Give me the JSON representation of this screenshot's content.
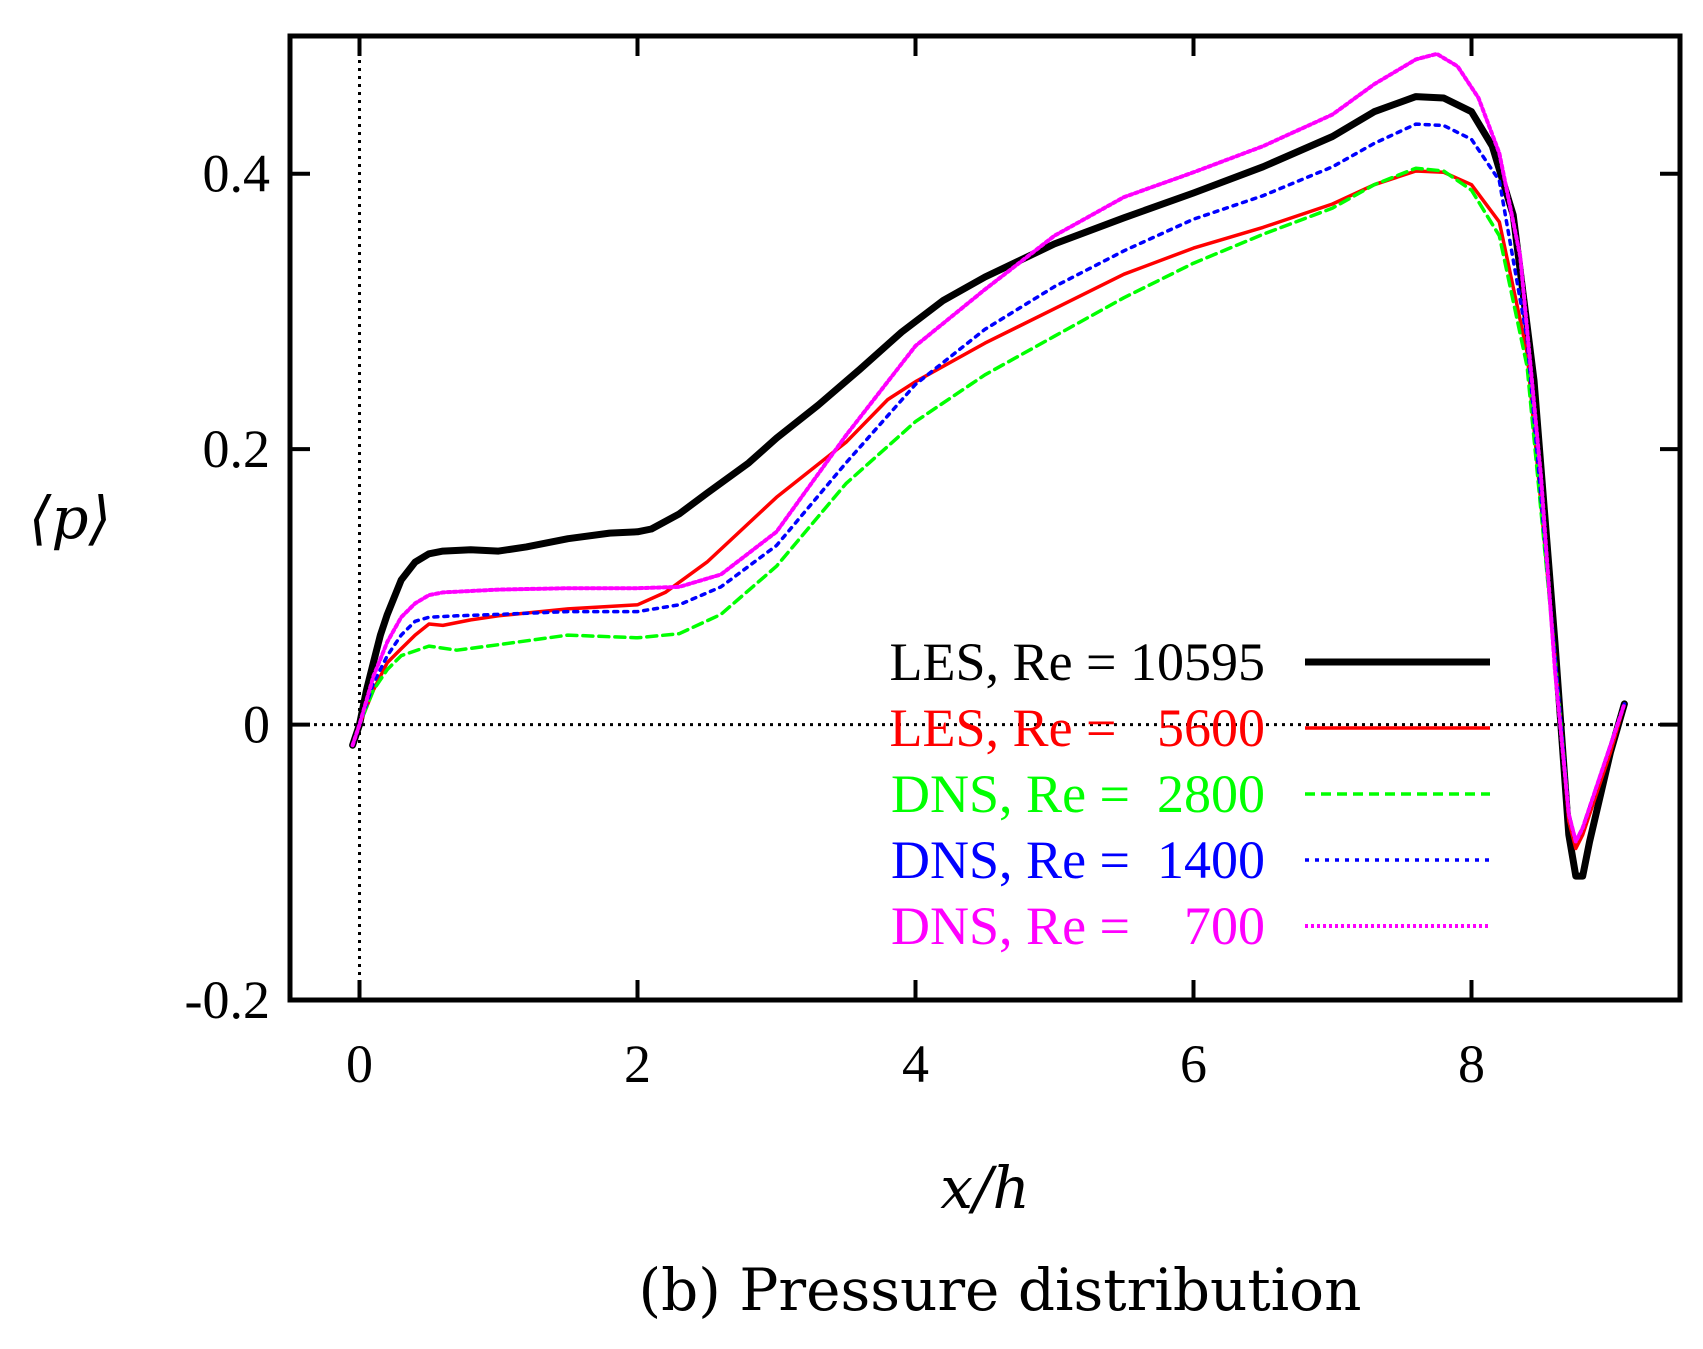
{
  "chart_data": {
    "type": "line",
    "title": "",
    "caption": "(b) Pressure distribution",
    "xlabel": "x/h",
    "ylabel": "⟨p⟩",
    "xlim": [
      -0.5,
      9.5
    ],
    "ylim": [
      -0.2,
      0.5
    ],
    "xticks": [
      0,
      2,
      4,
      6,
      8
    ],
    "xtick_labels": [
      "0",
      "2",
      "4",
      "6",
      "8"
    ],
    "yticks": [
      -0.2,
      0,
      0.2,
      0.4
    ],
    "ytick_labels": [
      "-0.2",
      "0",
      "0.2",
      "0.4"
    ],
    "grid": false,
    "reference_lines": [
      {
        "axis": "y",
        "value": 0,
        "style": "dotted"
      },
      {
        "axis": "x",
        "value": 0,
        "style": "dotted"
      }
    ],
    "legend_position": "lower-right inside",
    "series": [
      {
        "name": "LES, Re = 10595",
        "color": "#000000",
        "style": "solid-thick",
        "x": [
          -0.05,
          0,
          0.05,
          0.1,
          0.15,
          0.2,
          0.3,
          0.4,
          0.5,
          0.6,
          0.8,
          1.0,
          1.2,
          1.5,
          1.8,
          2.0,
          2.1,
          2.3,
          2.5,
          2.8,
          3.0,
          3.3,
          3.6,
          3.9,
          4.2,
          4.5,
          5.0,
          5.5,
          6.0,
          6.5,
          7.0,
          7.3,
          7.6,
          7.8,
          8.0,
          8.15,
          8.3,
          8.45,
          8.6,
          8.7,
          8.75,
          8.8,
          8.85,
          9.0,
          9.1
        ],
        "y": [
          -0.015,
          0,
          0.025,
          0.045,
          0.065,
          0.08,
          0.105,
          0.118,
          0.124,
          0.126,
          0.127,
          0.126,
          0.129,
          0.135,
          0.139,
          0.14,
          0.142,
          0.153,
          0.168,
          0.19,
          0.208,
          0.232,
          0.258,
          0.285,
          0.308,
          0.325,
          0.349,
          0.368,
          0.386,
          0.405,
          0.427,
          0.445,
          0.456,
          0.455,
          0.445,
          0.42,
          0.37,
          0.25,
          0.06,
          -0.08,
          -0.11,
          -0.11,
          -0.085,
          -0.02,
          0.015
        ]
      },
      {
        "name": "LES, Re =   5600",
        "color": "#ff0000",
        "style": "solid",
        "x": [
          -0.05,
          0,
          0.1,
          0.2,
          0.3,
          0.4,
          0.5,
          0.6,
          0.8,
          1.0,
          1.5,
          2.0,
          2.2,
          2.5,
          3.0,
          3.5,
          3.8,
          4.0,
          4.5,
          5.0,
          5.5,
          6.0,
          6.5,
          7.0,
          7.3,
          7.6,
          7.8,
          8.0,
          8.2,
          8.4,
          8.6,
          8.7,
          8.75,
          8.8,
          8.9,
          9.0,
          9.1
        ],
        "y": [
          -0.015,
          0,
          0.025,
          0.045,
          0.055,
          0.065,
          0.073,
          0.072,
          0.076,
          0.079,
          0.084,
          0.087,
          0.096,
          0.118,
          0.165,
          0.205,
          0.236,
          0.249,
          0.277,
          0.302,
          0.327,
          0.346,
          0.361,
          0.378,
          0.392,
          0.402,
          0.401,
          0.392,
          0.365,
          0.27,
          0.05,
          -0.07,
          -0.09,
          -0.08,
          -0.05,
          -0.02,
          0.015
        ]
      },
      {
        "name": "DNS, Re =  2800",
        "color": "#00ff00",
        "style": "dashed",
        "x": [
          -0.05,
          0,
          0.1,
          0.2,
          0.3,
          0.5,
          0.7,
          1.0,
          1.5,
          2.0,
          2.3,
          2.6,
          3.0,
          3.5,
          4.0,
          4.5,
          5.0,
          5.5,
          6.0,
          6.5,
          7.0,
          7.3,
          7.6,
          7.8,
          8.0,
          8.2,
          8.4,
          8.6,
          8.7,
          8.75,
          8.8,
          8.9,
          9.0,
          9.1
        ],
        "y": [
          -0.015,
          0,
          0.025,
          0.04,
          0.05,
          0.057,
          0.054,
          0.058,
          0.065,
          0.063,
          0.066,
          0.08,
          0.115,
          0.175,
          0.22,
          0.254,
          0.282,
          0.31,
          0.335,
          0.356,
          0.375,
          0.392,
          0.404,
          0.402,
          0.388,
          0.355,
          0.26,
          0.05,
          -0.065,
          -0.085,
          -0.075,
          -0.045,
          -0.015,
          0.015
        ]
      },
      {
        "name": "DNS, Re =  1400",
        "color": "#0000ff",
        "style": "dotted-fine",
        "x": [
          -0.05,
          0,
          0.1,
          0.2,
          0.3,
          0.4,
          0.5,
          0.7,
          1.0,
          1.5,
          2.0,
          2.3,
          2.6,
          3.0,
          3.5,
          4.0,
          4.5,
          5.0,
          5.5,
          6.0,
          6.5,
          7.0,
          7.3,
          7.6,
          7.8,
          8.0,
          8.2,
          8.4,
          8.6,
          8.7,
          8.75,
          8.8,
          8.9,
          9.0,
          9.1
        ],
        "y": [
          -0.015,
          0,
          0.03,
          0.05,
          0.065,
          0.075,
          0.078,
          0.079,
          0.08,
          0.082,
          0.082,
          0.087,
          0.1,
          0.13,
          0.19,
          0.247,
          0.287,
          0.318,
          0.344,
          0.367,
          0.384,
          0.405,
          0.422,
          0.436,
          0.435,
          0.425,
          0.395,
          0.28,
          0.05,
          -0.065,
          -0.085,
          -0.075,
          -0.045,
          -0.015,
          0.015
        ]
      },
      {
        "name": "DNS, Re =    700",
        "color": "#ff00ff",
        "style": "dotted-dense",
        "x": [
          -0.05,
          0,
          0.1,
          0.2,
          0.3,
          0.4,
          0.5,
          0.6,
          0.8,
          1.0,
          1.5,
          2.0,
          2.3,
          2.6,
          3.0,
          3.5,
          4.0,
          4.5,
          5.0,
          5.5,
          6.0,
          6.5,
          7.0,
          7.3,
          7.6,
          7.75,
          7.9,
          8.05,
          8.2,
          8.35,
          8.5,
          8.6,
          8.7,
          8.75,
          8.8,
          8.9,
          9.0,
          9.1
        ],
        "y": [
          -0.015,
          0,
          0.035,
          0.06,
          0.078,
          0.088,
          0.094,
          0.096,
          0.097,
          0.098,
          0.099,
          0.099,
          0.1,
          0.109,
          0.14,
          0.21,
          0.275,
          0.316,
          0.355,
          0.383,
          0.401,
          0.42,
          0.443,
          0.465,
          0.483,
          0.487,
          0.478,
          0.455,
          0.415,
          0.34,
          0.18,
          0.04,
          -0.065,
          -0.085,
          -0.075,
          -0.045,
          -0.015,
          0.015
        ]
      }
    ]
  }
}
